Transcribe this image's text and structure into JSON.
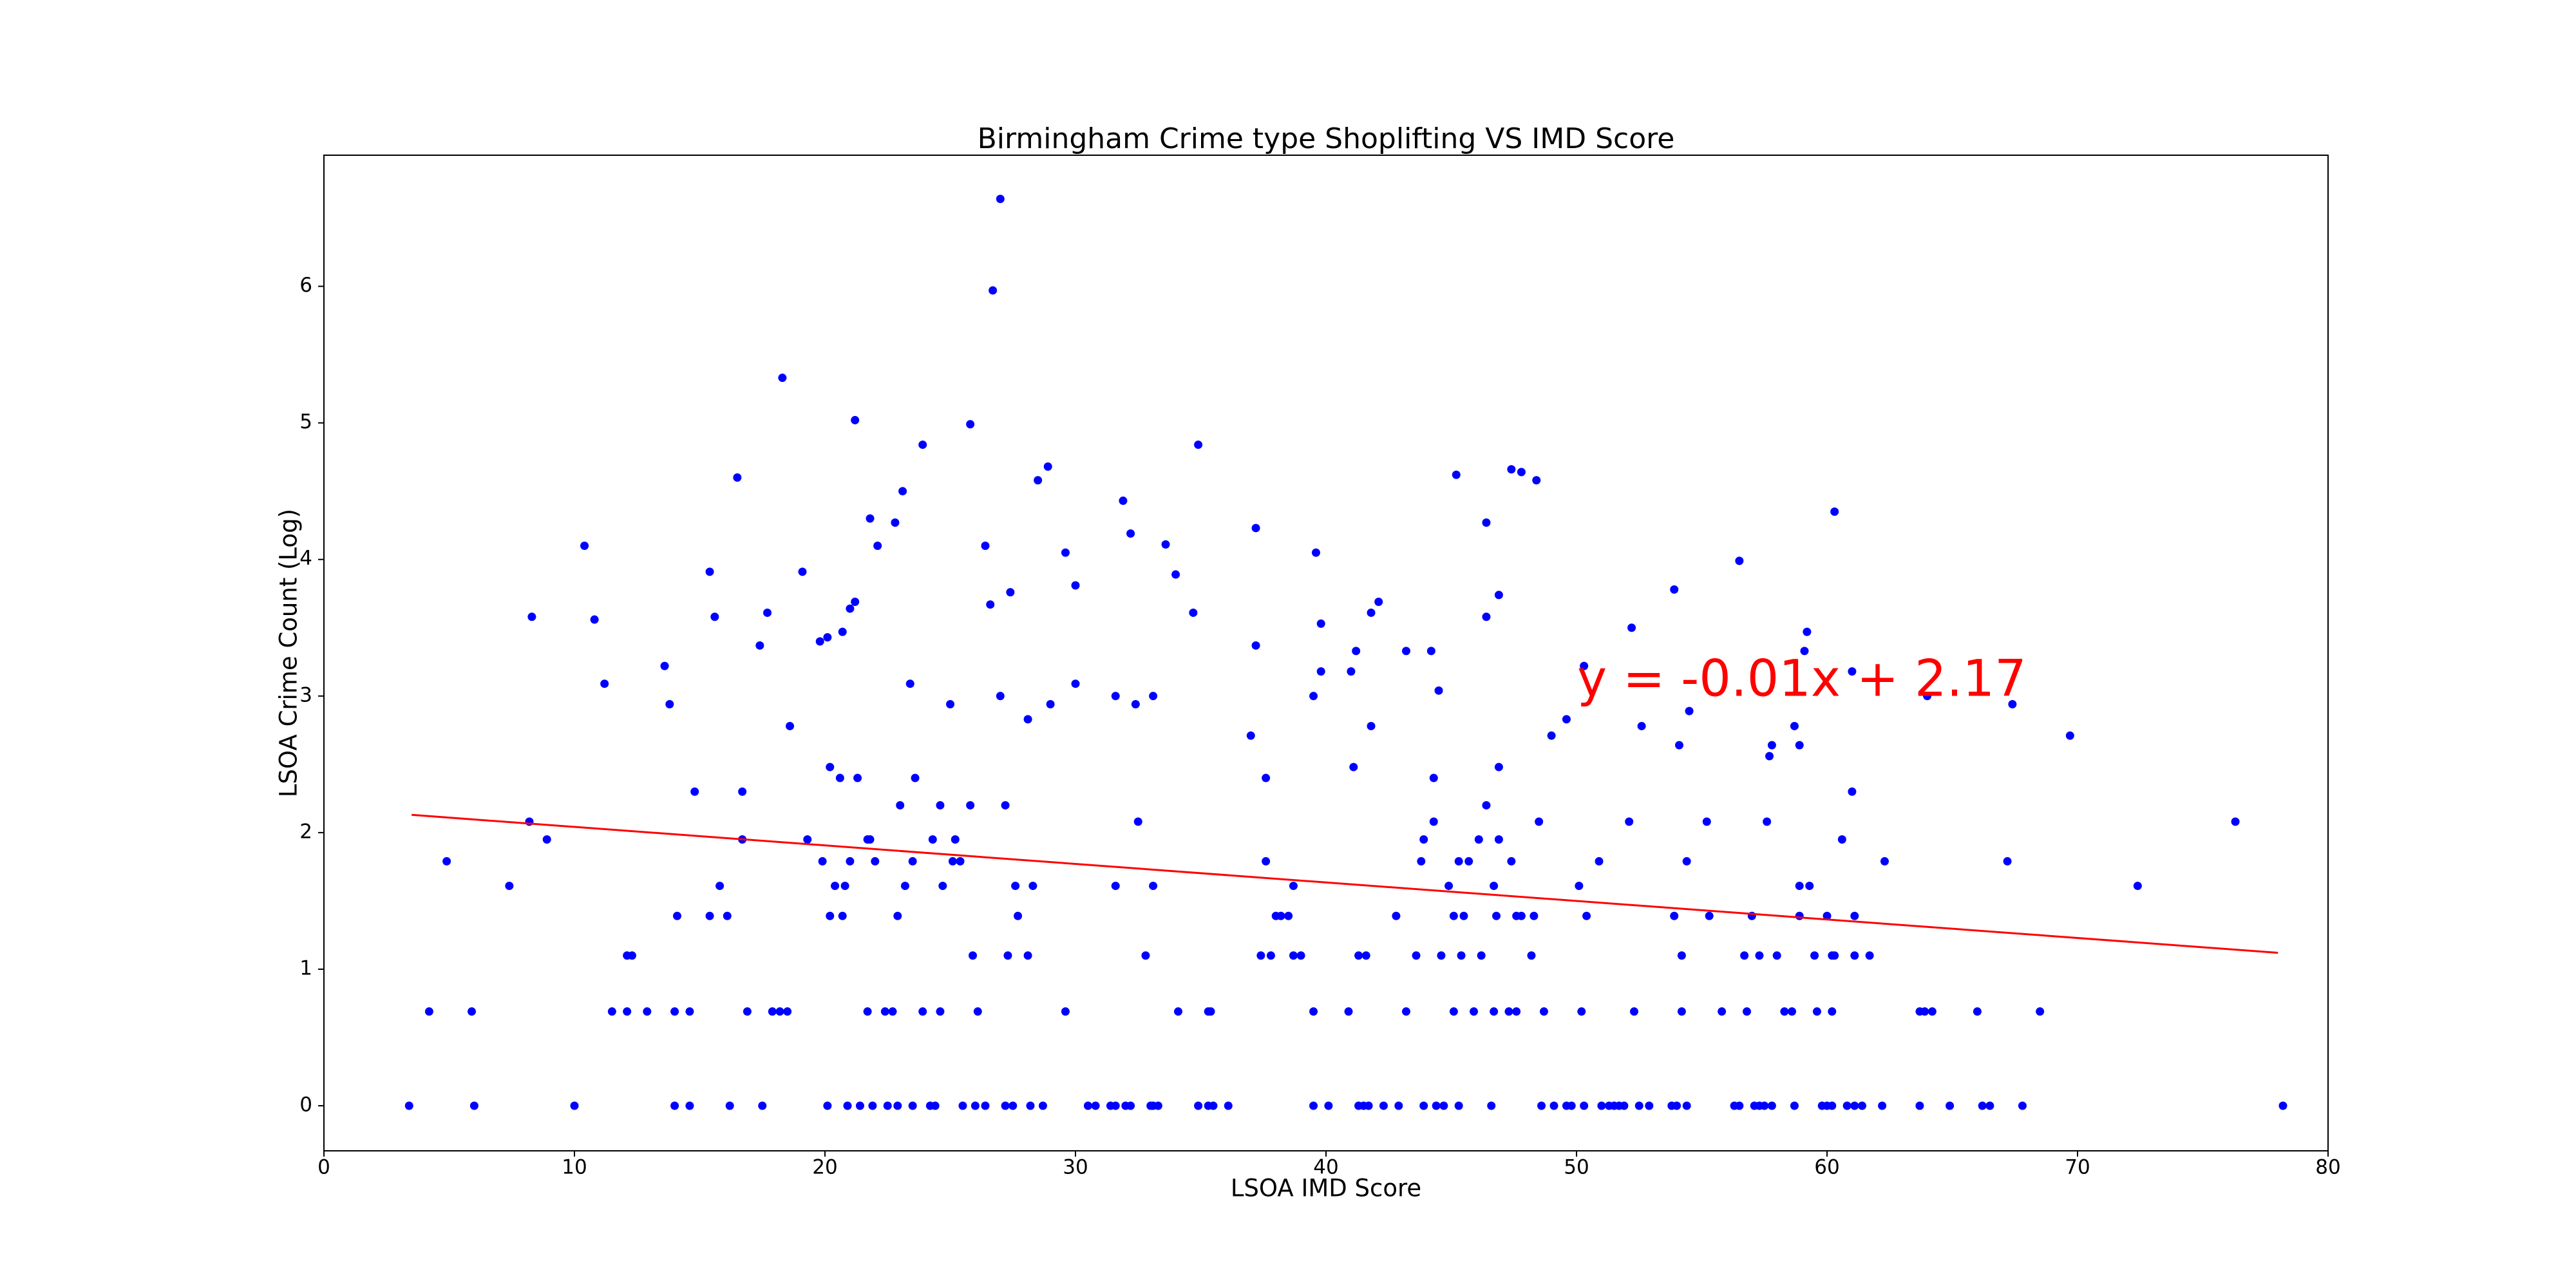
{
  "chart_data": {
    "type": "scatter",
    "title": "Birmingham Crime type Shoplifting VS IMD Score",
    "x_label": "LSOA IMD Score",
    "y_label": "LSOA Crime Count (Log)",
    "color": "#0000ff",
    "x": [
      3.4,
      6.0,
      10.0,
      14.0,
      14.6,
      16.2,
      17.5,
      20.1,
      20.9,
      21.4,
      21.9,
      22.5,
      22.9,
      23.5,
      24.2,
      24.4,
      25.5,
      26.0,
      26.4,
      27.2,
      27.5,
      28.2,
      28.7,
      30.5,
      30.8,
      31.4,
      31.6,
      32.0,
      32.2,
      33.0,
      33.1,
      33.3,
      34.9,
      35.3,
      35.5,
      36.1,
      39.5,
      40.1,
      41.3,
      41.5,
      41.7,
      42.3,
      42.9,
      43.9,
      44.4,
      44.7,
      45.3,
      46.6,
      48.6,
      49.1,
      49.6,
      49.8,
      50.3,
      51.0,
      51.3,
      51.5,
      51.7,
      51.9,
      52.5,
      52.9,
      53.8,
      54.0,
      54.4,
      56.3,
      56.5,
      57.1,
      57.3,
      57.5,
      57.8,
      58.7,
      59.8,
      60.0,
      60.2,
      60.8,
      61.1,
      61.4,
      62.2,
      63.7,
      64.9,
      66.2,
      66.5,
      67.8,
      78.2,
      4.2,
      5.9,
      11.5,
      12.1,
      12.9,
      14.0,
      14.6,
      16.9,
      17.9,
      18.2,
      18.5,
      21.7,
      22.4,
      22.7,
      23.9,
      24.6,
      26.1,
      29.6,
      34.1,
      35.3,
      35.4,
      39.5,
      40.9,
      43.2,
      45.1,
      45.9,
      46.7,
      47.3,
      47.6,
      48.7,
      50.2,
      52.3,
      54.2,
      55.8,
      56.8,
      58.3,
      58.6,
      59.6,
      60.2,
      63.7,
      63.9,
      64.2,
      66.0,
      68.5,
      12.1,
      12.3,
      25.9,
      27.3,
      28.1,
      32.8,
      37.4,
      37.8,
      38.7,
      39.0,
      41.3,
      41.6,
      43.6,
      44.6,
      45.4,
      46.2,
      48.2,
      54.2,
      56.7,
      57.3,
      58.0,
      59.5,
      60.2,
      60.3,
      61.1,
      61.7,
      14.1,
      15.4,
      16.1,
      20.2,
      20.7,
      22.9,
      27.7,
      38.0,
      38.2,
      38.5,
      42.8,
      45.1,
      45.5,
      46.8,
      47.6,
      47.8,
      48.3,
      50.4,
      53.9,
      55.3,
      57.0,
      58.9,
      60.0,
      61.1,
      7.4,
      15.8,
      20.4,
      20.8,
      23.2,
      24.7,
      27.6,
      28.3,
      31.6,
      33.1,
      38.7,
      44.9,
      46.7,
      50.1,
      58.9,
      59.3,
      72.4,
      4.9,
      19.9,
      21.0,
      22.0,
      23.5,
      25.1,
      25.4,
      37.6,
      43.8,
      45.3,
      45.7,
      47.4,
      50.9,
      54.4,
      62.3,
      67.2,
      8.9,
      16.7,
      19.3,
      21.7,
      21.8,
      24.3,
      25.2,
      43.9,
      46.1,
      46.9,
      60.6,
      8.2,
      32.5,
      44.3,
      48.5,
      52.1,
      55.2,
      57.6,
      76.3,
      23.0,
      24.6,
      25.8,
      27.2,
      46.4,
      14.8,
      16.7,
      61.0,
      20.6,
      21.3,
      23.6,
      37.6,
      44.3,
      20.2,
      41.1,
      46.9,
      18.6,
      69.7,
      49.0,
      37.0,
      58.7,
      52.6,
      41.8,
      28.1,
      49.6,
      57.7,
      57.8,
      54.1,
      58.9,
      54.5,
      25.0,
      29.0,
      32.4,
      13.8,
      67.4,
      27.0,
      31.6,
      33.1,
      39.5,
      64.0,
      11.2,
      23.4,
      30.0,
      44.5,
      41.0,
      39.8,
      61.0,
      13.6,
      50.3,
      41.2,
      43.2,
      44.2,
      59.1,
      17.4,
      37.2,
      19.8,
      20.1,
      20.7,
      59.2,
      52.2,
      39.8,
      8.3,
      15.6,
      46.4,
      10.8,
      17.7,
      34.7,
      41.8,
      21.0,
      42.1,
      21.2,
      26.6,
      46.9,
      27.4,
      53.9,
      30.0,
      34.0,
      15.4,
      19.1,
      56.5,
      29.6,
      39.6,
      10.4,
      26.4,
      33.6,
      22.1,
      32.2,
      37.2,
      22.8,
      46.4,
      21.8,
      31.9,
      60.3,
      23.1,
      28.5,
      48.4,
      16.5,
      45.2,
      28.9,
      47.4,
      47.8,
      23.9,
      34.9,
      25.8,
      21.2,
      18.3,
      26.7,
      27.0
    ],
    "values": [
      0,
      0,
      0,
      0,
      0,
      0,
      0,
      0,
      0,
      0,
      0,
      0,
      0,
      0,
      0,
      0,
      0,
      0,
      0,
      0,
      0,
      0,
      0,
      0,
      0,
      0,
      0,
      0,
      0,
      0,
      0,
      0,
      0,
      0,
      0,
      0,
      0,
      0,
      0,
      0,
      0,
      0,
      0,
      0,
      0,
      0,
      0,
      0,
      0,
      0,
      0,
      0,
      0,
      0,
      0,
      0,
      0,
      0,
      0,
      0,
      0,
      0,
      0,
      0,
      0,
      0,
      0,
      0,
      0,
      0,
      0,
      0,
      0,
      0,
      0,
      0,
      0,
      0,
      0,
      0,
      0,
      0,
      0,
      0.69,
      0.69,
      0.69,
      0.69,
      0.69,
      0.69,
      0.69,
      0.69,
      0.69,
      0.69,
      0.69,
      0.69,
      0.69,
      0.69,
      0.69,
      0.69,
      0.69,
      0.69,
      0.69,
      0.69,
      0.69,
      0.69,
      0.69,
      0.69,
      0.69,
      0.69,
      0.69,
      0.69,
      0.69,
      0.69,
      0.69,
      0.69,
      0.69,
      0.69,
      0.69,
      0.69,
      0.69,
      0.69,
      0.69,
      0.69,
      0.69,
      0.69,
      0.69,
      0.69,
      1.1,
      1.1,
      1.1,
      1.1,
      1.1,
      1.1,
      1.1,
      1.1,
      1.1,
      1.1,
      1.1,
      1.1,
      1.1,
      1.1,
      1.1,
      1.1,
      1.1,
      1.1,
      1.1,
      1.1,
      1.1,
      1.1,
      1.1,
      1.1,
      1.1,
      1.1,
      1.39,
      1.39,
      1.39,
      1.39,
      1.39,
      1.39,
      1.39,
      1.39,
      1.39,
      1.39,
      1.39,
      1.39,
      1.39,
      1.39,
      1.39,
      1.39,
      1.39,
      1.39,
      1.39,
      1.39,
      1.39,
      1.39,
      1.39,
      1.39,
      1.61,
      1.61,
      1.61,
      1.61,
      1.61,
      1.61,
      1.61,
      1.61,
      1.61,
      1.61,
      1.61,
      1.61,
      1.61,
      1.61,
      1.61,
      1.61,
      1.61,
      1.79,
      1.79,
      1.79,
      1.79,
      1.79,
      1.79,
      1.79,
      1.79,
      1.79,
      1.79,
      1.79,
      1.79,
      1.79,
      1.79,
      1.79,
      1.79,
      1.95,
      1.95,
      1.95,
      1.95,
      1.95,
      1.95,
      1.95,
      1.95,
      1.95,
      1.95,
      1.95,
      2.08,
      2.08,
      2.08,
      2.08,
      2.08,
      2.08,
      2.08,
      2.08,
      2.2,
      2.2,
      2.2,
      2.2,
      2.2,
      2.3,
      2.3,
      2.3,
      2.4,
      2.4,
      2.4,
      2.4,
      2.4,
      2.48,
      2.48,
      2.48,
      2.78,
      2.71,
      2.71,
      2.71,
      2.78,
      2.78,
      2.78,
      2.83,
      2.83,
      2.56,
      2.64,
      2.64,
      2.64,
      2.89,
      2.94,
      2.94,
      2.94,
      2.94,
      2.94,
      3.0,
      3.0,
      3.0,
      3.0,
      3.0,
      3.09,
      3.09,
      3.09,
      3.04,
      3.18,
      3.18,
      3.18,
      3.22,
      3.22,
      3.33,
      3.33,
      3.33,
      3.33,
      3.37,
      3.37,
      3.4,
      3.43,
      3.47,
      3.47,
      3.5,
      3.53,
      3.58,
      3.58,
      3.58,
      3.56,
      3.61,
      3.61,
      3.61,
      3.64,
      3.69,
      3.69,
      3.67,
      3.74,
      3.76,
      3.78,
      3.81,
      3.89,
      3.91,
      3.91,
      3.99,
      4.05,
      4.05,
      4.1,
      4.1,
      4.11,
      4.1,
      4.19,
      4.23,
      4.27,
      4.27,
      4.3,
      4.43,
      4.35,
      4.5,
      4.58,
      4.58,
      4.6,
      4.62,
      4.68,
      4.66,
      4.64,
      4.84,
      4.84,
      4.99,
      5.02,
      5.33,
      5.97,
      6.64
    ],
    "fit": {
      "x": [
        3.5,
        78
      ],
      "values": [
        2.13,
        1.12
      ],
      "color": "#ff0000"
    },
    "annotation": "y = -0.01x + 2.17",
    "annotation_color": "#ff0000",
    "xlim": [
      0,
      80
    ],
    "ylim": [
      -0.33,
      6.96
    ],
    "xticks": [
      0,
      10,
      20,
      30,
      40,
      50,
      60,
      70,
      80
    ],
    "yticks": [
      0,
      1,
      2,
      3,
      4,
      5,
      6
    ],
    "grid": false
  }
}
